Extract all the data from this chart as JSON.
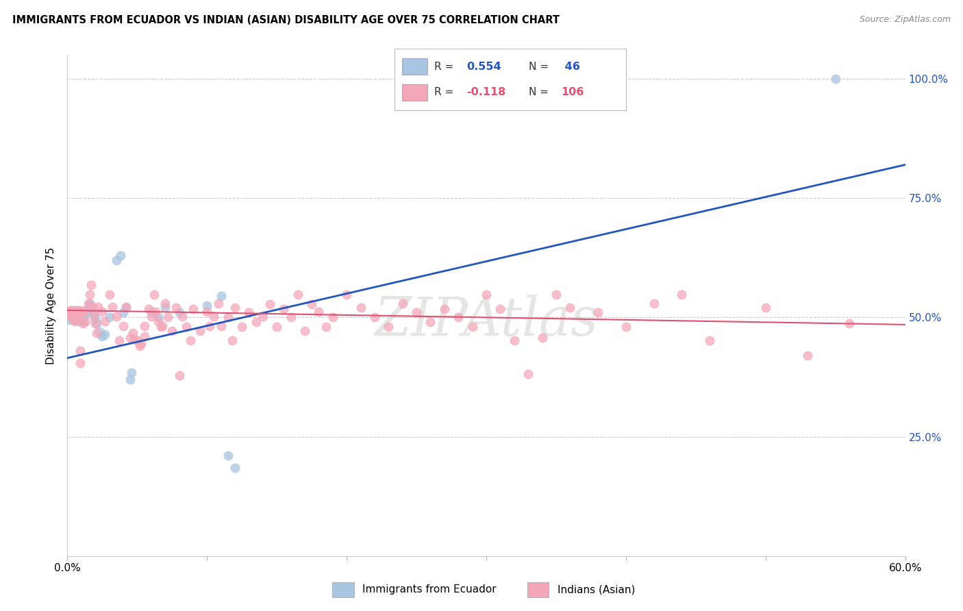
{
  "title": "IMMIGRANTS FROM ECUADOR VS INDIAN (ASIAN) DISABILITY AGE OVER 75 CORRELATION CHART",
  "source": "Source: ZipAtlas.com",
  "ylabel": "Disability Age Over 75",
  "x_min": 0.0,
  "x_max": 0.6,
  "y_min": 0.0,
  "y_max": 1.05,
  "y_ticks": [
    0.0,
    0.25,
    0.5,
    0.75,
    1.0
  ],
  "y_tick_labels_right": [
    "",
    "25.0%",
    "50.0%",
    "75.0%",
    "100.0%"
  ],
  "x_tick_positions": [
    0.0,
    0.1,
    0.2,
    0.3,
    0.4,
    0.5,
    0.6
  ],
  "x_tick_labels": [
    "0.0%",
    "",
    "",
    "",
    "",
    "",
    "60.0%"
  ],
  "legend_label_ecuador": "Immigrants from Ecuador",
  "legend_label_indian": "Indians (Asian)",
  "ecuador_color": "#a8c4e0",
  "indian_color": "#f4a7b9",
  "ecuador_line_color": "#2255bb",
  "indian_line_color": "#e05070",
  "ecuador_line_y0": 0.415,
  "ecuador_line_y1": 0.82,
  "indian_line_y0": 0.515,
  "indian_line_y1": 0.485,
  "watermark": "ZIPAtlas",
  "ecuador_points": [
    [
      0.001,
      0.505
    ],
    [
      0.002,
      0.51
    ],
    [
      0.002,
      0.495
    ],
    [
      0.003,
      0.505
    ],
    [
      0.003,
      0.498
    ],
    [
      0.004,
      0.512
    ],
    [
      0.004,
      0.502
    ],
    [
      0.005,
      0.508
    ],
    [
      0.005,
      0.495
    ],
    [
      0.006,
      0.51
    ],
    [
      0.006,
      0.498
    ],
    [
      0.007,
      0.505
    ],
    [
      0.007,
      0.515
    ],
    [
      0.008,
      0.492
    ],
    [
      0.008,
      0.508
    ],
    [
      0.009,
      0.502
    ],
    [
      0.01,
      0.498
    ],
    [
      0.011,
      0.49
    ],
    [
      0.012,
      0.505
    ],
    [
      0.013,
      0.51
    ],
    [
      0.015,
      0.52
    ],
    [
      0.016,
      0.53
    ],
    [
      0.017,
      0.525
    ],
    [
      0.018,
      0.515
    ],
    [
      0.019,
      0.505
    ],
    [
      0.02,
      0.498
    ],
    [
      0.021,
      0.488
    ],
    [
      0.023,
      0.47
    ],
    [
      0.025,
      0.46
    ],
    [
      0.027,
      0.465
    ],
    [
      0.03,
      0.5
    ],
    [
      0.035,
      0.62
    ],
    [
      0.038,
      0.63
    ],
    [
      0.04,
      0.51
    ],
    [
      0.042,
      0.52
    ],
    [
      0.045,
      0.37
    ],
    [
      0.046,
      0.385
    ],
    [
      0.06,
      0.51
    ],
    [
      0.065,
      0.5
    ],
    [
      0.07,
      0.52
    ],
    [
      0.08,
      0.51
    ],
    [
      0.1,
      0.525
    ],
    [
      0.11,
      0.545
    ],
    [
      0.115,
      0.21
    ],
    [
      0.12,
      0.185
    ],
    [
      0.55,
      1.0
    ]
  ],
  "indian_points": [
    [
      0.001,
      0.512
    ],
    [
      0.002,
      0.505
    ],
    [
      0.002,
      0.515
    ],
    [
      0.003,
      0.498
    ],
    [
      0.003,
      0.51
    ],
    [
      0.004,
      0.505
    ],
    [
      0.004,
      0.515
    ],
    [
      0.005,
      0.492
    ],
    [
      0.005,
      0.508
    ],
    [
      0.006,
      0.505
    ],
    [
      0.006,
      0.495
    ],
    [
      0.007,
      0.515
    ],
    [
      0.007,
      0.505
    ],
    [
      0.008,
      0.508
    ],
    [
      0.008,
      0.495
    ],
    [
      0.009,
      0.405
    ],
    [
      0.009,
      0.43
    ],
    [
      0.01,
      0.515
    ],
    [
      0.011,
      0.488
    ],
    [
      0.012,
      0.512
    ],
    [
      0.013,
      0.492
    ],
    [
      0.015,
      0.53
    ],
    [
      0.016,
      0.548
    ],
    [
      0.017,
      0.568
    ],
    [
      0.018,
      0.522
    ],
    [
      0.019,
      0.505
    ],
    [
      0.02,
      0.488
    ],
    [
      0.021,
      0.468
    ],
    [
      0.022,
      0.522
    ],
    [
      0.025,
      0.512
    ],
    [
      0.027,
      0.492
    ],
    [
      0.03,
      0.548
    ],
    [
      0.032,
      0.522
    ],
    [
      0.035,
      0.502
    ],
    [
      0.037,
      0.452
    ],
    [
      0.04,
      0.482
    ],
    [
      0.042,
      0.522
    ],
    [
      0.045,
      0.458
    ],
    [
      0.047,
      0.468
    ],
    [
      0.048,
      0.455
    ],
    [
      0.05,
      0.452
    ],
    [
      0.052,
      0.44
    ],
    [
      0.053,
      0.445
    ],
    [
      0.055,
      0.482
    ],
    [
      0.055,
      0.46
    ],
    [
      0.058,
      0.518
    ],
    [
      0.06,
      0.502
    ],
    [
      0.062,
      0.548
    ],
    [
      0.063,
      0.512
    ],
    [
      0.065,
      0.492
    ],
    [
      0.067,
      0.48
    ],
    [
      0.068,
      0.482
    ],
    [
      0.07,
      0.53
    ],
    [
      0.072,
      0.5
    ],
    [
      0.075,
      0.472
    ],
    [
      0.078,
      0.52
    ],
    [
      0.08,
      0.378
    ],
    [
      0.082,
      0.502
    ],
    [
      0.085,
      0.48
    ],
    [
      0.088,
      0.452
    ],
    [
      0.09,
      0.518
    ],
    [
      0.095,
      0.472
    ],
    [
      0.1,
      0.512
    ],
    [
      0.102,
      0.482
    ],
    [
      0.105,
      0.502
    ],
    [
      0.108,
      0.53
    ],
    [
      0.11,
      0.482
    ],
    [
      0.115,
      0.5
    ],
    [
      0.118,
      0.452
    ],
    [
      0.12,
      0.52
    ],
    [
      0.125,
      0.48
    ],
    [
      0.13,
      0.51
    ],
    [
      0.135,
      0.49
    ],
    [
      0.14,
      0.502
    ],
    [
      0.145,
      0.528
    ],
    [
      0.15,
      0.48
    ],
    [
      0.155,
      0.518
    ],
    [
      0.16,
      0.5
    ],
    [
      0.165,
      0.548
    ],
    [
      0.17,
      0.472
    ],
    [
      0.175,
      0.528
    ],
    [
      0.18,
      0.512
    ],
    [
      0.185,
      0.48
    ],
    [
      0.19,
      0.5
    ],
    [
      0.2,
      0.548
    ],
    [
      0.21,
      0.52
    ],
    [
      0.22,
      0.5
    ],
    [
      0.23,
      0.48
    ],
    [
      0.24,
      0.53
    ],
    [
      0.25,
      0.51
    ],
    [
      0.26,
      0.49
    ],
    [
      0.27,
      0.518
    ],
    [
      0.28,
      0.5
    ],
    [
      0.29,
      0.48
    ],
    [
      0.3,
      0.548
    ],
    [
      0.31,
      0.518
    ],
    [
      0.32,
      0.452
    ],
    [
      0.33,
      0.382
    ],
    [
      0.34,
      0.458
    ],
    [
      0.35,
      0.548
    ],
    [
      0.36,
      0.52
    ],
    [
      0.38,
      0.51
    ],
    [
      0.4,
      0.48
    ],
    [
      0.42,
      0.53
    ],
    [
      0.44,
      0.548
    ],
    [
      0.46,
      0.452
    ],
    [
      0.5,
      0.52
    ],
    [
      0.53,
      0.42
    ],
    [
      0.56,
      0.488
    ]
  ]
}
